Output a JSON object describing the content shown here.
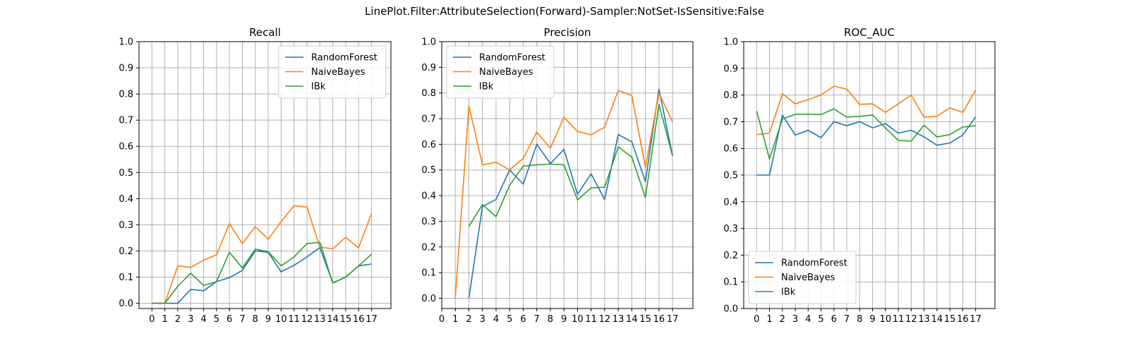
{
  "suptitle": "LinePlot.Filter:AttributeSelection(Forward)-Sampler:NotSet-IsSensitive:False",
  "series_colors": {
    "RandomForest": "#1f77b4",
    "NaiveBayes": "#ff7f0e",
    "IBk": "#2ca02c"
  },
  "chart_data": [
    {
      "type": "line",
      "title": "Recall",
      "xlabel": "",
      "ylabel": "",
      "xlim": [
        -1,
        18.5
      ],
      "ylim": [
        -0.02,
        1.0
      ],
      "xticks": [
        0,
        1,
        2,
        3,
        4,
        5,
        6,
        7,
        8,
        9,
        10,
        11,
        12,
        13,
        14,
        15,
        16,
        17
      ],
      "yticks": [
        0.0,
        0.1,
        0.2,
        0.3,
        0.4,
        0.5,
        0.6,
        0.7,
        0.8,
        0.9,
        1.0
      ],
      "ytick_labels": [
        "0.0",
        "0.1",
        "0.2",
        "0.3",
        "0.4",
        "0.5",
        "0.6",
        "0.7",
        "0.8",
        "0.9",
        "1.0"
      ],
      "grid": true,
      "legend_loc": "upper-right",
      "x": [
        0,
        1,
        2,
        3,
        4,
        5,
        6,
        7,
        8,
        9,
        10,
        11,
        12,
        13,
        14,
        15,
        16,
        17
      ],
      "series": [
        {
          "name": "RandomForest",
          "values": [
            0.0,
            0.0,
            0.0,
            0.053,
            0.048,
            0.083,
            0.098,
            0.126,
            0.2,
            0.195,
            0.12,
            0.145,
            0.177,
            0.213,
            0.078,
            0.1,
            0.143,
            0.15
          ]
        },
        {
          "name": "NaiveBayes",
          "values": [
            0.0,
            0.0,
            0.143,
            0.137,
            0.165,
            0.185,
            0.305,
            0.228,
            0.293,
            0.245,
            0.312,
            0.373,
            0.368,
            0.215,
            0.208,
            0.252,
            0.212,
            0.343
          ]
        },
        {
          "name": "IBk",
          "values": [
            0.0,
            0.0,
            0.065,
            0.115,
            0.068,
            0.083,
            0.195,
            0.135,
            0.207,
            0.197,
            0.143,
            0.177,
            0.228,
            0.233,
            0.077,
            0.1,
            0.143,
            0.188
          ]
        }
      ]
    },
    {
      "type": "line",
      "title": "Precision",
      "xlabel": "",
      "ylabel": "",
      "xlim": [
        0,
        18.5
      ],
      "ylim": [
        -0.04,
        1.0
      ],
      "xticks": [
        0,
        1,
        2,
        3,
        4,
        5,
        6,
        7,
        8,
        9,
        10,
        11,
        12,
        13,
        14,
        15,
        16,
        17
      ],
      "yticks": [
        0.0,
        0.1,
        0.2,
        0.3,
        0.4,
        0.5,
        0.6,
        0.7,
        0.8,
        0.9,
        1.0
      ],
      "ytick_labels": [
        "0.0",
        "0.1",
        "0.2",
        "0.3",
        "0.4",
        "0.5",
        "0.6",
        "0.7",
        "0.8",
        "0.9",
        "1.0"
      ],
      "grid": true,
      "legend_loc": "upper-left",
      "series": [
        {
          "name": "RandomForest",
          "x": [
            2,
            3,
            4,
            5,
            6,
            7,
            8,
            9,
            10,
            11,
            12,
            13,
            14,
            15,
            16,
            17
          ],
          "values": [
            0.0,
            0.358,
            0.385,
            0.5,
            0.445,
            0.6,
            0.525,
            0.58,
            0.405,
            0.485,
            0.385,
            0.638,
            0.61,
            0.455,
            0.815,
            0.555
          ]
        },
        {
          "name": "NaiveBayes",
          "x": [
            1,
            2,
            3,
            4,
            5,
            6,
            7,
            8,
            9,
            10,
            11,
            12,
            13,
            14,
            15,
            16,
            17
          ],
          "values": [
            0.0,
            0.75,
            0.52,
            0.53,
            0.5,
            0.545,
            0.647,
            0.585,
            0.705,
            0.65,
            0.637,
            0.667,
            0.81,
            0.79,
            0.51,
            0.8,
            0.687
          ]
        },
        {
          "name": "IBk",
          "x": [
            2,
            3,
            4,
            5,
            6,
            7,
            8,
            9,
            10,
            11,
            12,
            13,
            14,
            15,
            16,
            17
          ],
          "values": [
            0.28,
            0.365,
            0.318,
            0.44,
            0.515,
            0.52,
            0.523,
            0.52,
            0.383,
            0.43,
            0.433,
            0.59,
            0.55,
            0.393,
            0.755,
            0.555
          ]
        }
      ]
    },
    {
      "type": "line",
      "title": "ROC_AUC",
      "xlabel": "",
      "ylabel": "",
      "xlim": [
        -1,
        18.5
      ],
      "ylim": [
        0.0,
        1.0
      ],
      "xticks": [
        0,
        1,
        2,
        3,
        4,
        5,
        6,
        7,
        8,
        9,
        10,
        11,
        12,
        13,
        14,
        15,
        16,
        17
      ],
      "yticks": [
        0.0,
        0.1,
        0.2,
        0.3,
        0.4,
        0.5,
        0.6,
        0.7,
        0.8,
        0.9,
        1.0
      ],
      "ytick_labels": [
        "0.0",
        "0.1",
        "0.2",
        "0.3",
        "0.4",
        "0.5",
        "0.6",
        "0.7",
        "0.8",
        "0.9",
        "1.0"
      ],
      "grid": true,
      "legend_loc": "lower-left",
      "x": [
        0,
        1,
        2,
        3,
        4,
        5,
        6,
        7,
        8,
        9,
        10,
        11,
        12,
        13,
        14,
        15,
        16,
        17
      ],
      "series": [
        {
          "name": "RandomForest",
          "values": [
            0.5,
            0.5,
            0.725,
            0.65,
            0.668,
            0.64,
            0.7,
            0.685,
            0.7,
            0.677,
            0.693,
            0.657,
            0.668,
            0.643,
            0.612,
            0.62,
            0.65,
            0.718
          ]
        },
        {
          "name": "NaiveBayes",
          "values": [
            0.652,
            0.657,
            0.805,
            0.767,
            0.783,
            0.8,
            0.833,
            0.822,
            0.765,
            0.767,
            0.735,
            0.767,
            0.8,
            0.717,
            0.72,
            0.752,
            0.735,
            0.818
          ]
        },
        {
          "name": "IBk",
          "values": [
            0.74,
            0.56,
            0.71,
            0.728,
            0.728,
            0.727,
            0.748,
            0.717,
            0.72,
            0.725,
            0.677,
            0.63,
            0.627,
            0.687,
            0.643,
            0.652,
            0.68,
            0.685
          ]
        }
      ]
    }
  ]
}
